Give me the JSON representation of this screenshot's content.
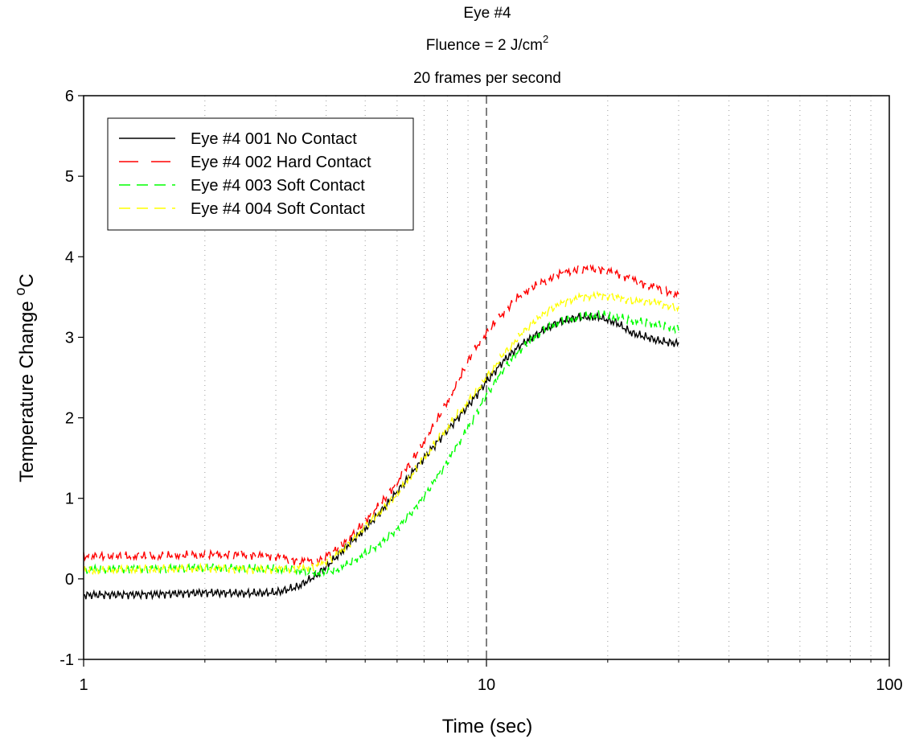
{
  "chart_data": {
    "type": "line",
    "title_lines": [
      "Eye #4",
      "Fluence = 2 J/cm",
      "20 frames per second"
    ],
    "title_superscript": "2",
    "xlabel": "Time (sec)",
    "ylabel": "Temperature Change ",
    "ylabel_superscript": "o",
    "ylabel_unit": "C",
    "xscale": "log",
    "xlim": [
      1,
      100
    ],
    "ylim": [
      -1,
      6
    ],
    "x_ticks": [
      "1",
      "10",
      "100"
    ],
    "y_ticks": [
      "-1",
      "0",
      "1",
      "2",
      "3",
      "4",
      "5",
      "6"
    ],
    "grid": "vertical minor dotted",
    "reference_line": {
      "x": 10,
      "style": "dashed"
    },
    "legend_position": "top-left",
    "series": [
      {
        "name": "Eye #4 001 No Contact",
        "color": "#000000",
        "dash": "solid",
        "x": [
          1,
          1.5,
          2,
          2.5,
          3,
          3.4,
          3.8,
          4.2,
          4.6,
          5,
          5.5,
          6,
          6.5,
          7,
          7.5,
          8,
          8.5,
          9,
          9.5,
          10,
          11,
          12,
          13,
          14,
          15,
          17,
          19,
          21,
          23,
          25,
          27,
          30
        ],
        "y": [
          -0.2,
          -0.19,
          -0.17,
          -0.18,
          -0.17,
          -0.1,
          0.05,
          0.25,
          0.45,
          0.62,
          0.85,
          1.08,
          1.3,
          1.5,
          1.68,
          1.85,
          2.0,
          2.15,
          2.3,
          2.45,
          2.7,
          2.88,
          3.0,
          3.1,
          3.18,
          3.25,
          3.25,
          3.18,
          3.05,
          3.0,
          2.95,
          2.92
        ]
      },
      {
        "name": "Eye #4 002 Hard Contact",
        "color": "#ff0000",
        "dash": "long-dash",
        "x": [
          1,
          1.5,
          2,
          2.5,
          3,
          3.4,
          3.8,
          4.2,
          4.6,
          5,
          5.5,
          6,
          6.5,
          7,
          7.5,
          8,
          8.5,
          9,
          9.5,
          10,
          11,
          12,
          13,
          14,
          15,
          17,
          19,
          21,
          23,
          25,
          27,
          30
        ],
        "y": [
          0.28,
          0.28,
          0.3,
          0.3,
          0.28,
          0.22,
          0.22,
          0.35,
          0.52,
          0.72,
          0.95,
          1.2,
          1.45,
          1.7,
          1.95,
          2.2,
          2.45,
          2.7,
          2.9,
          3.05,
          3.3,
          3.5,
          3.62,
          3.7,
          3.78,
          3.85,
          3.85,
          3.8,
          3.72,
          3.65,
          3.6,
          3.52
        ]
      },
      {
        "name": "Eye #4 003 Soft Contact",
        "color": "#00ff00",
        "dash": "dash",
        "x": [
          1,
          1.5,
          2,
          2.5,
          3,
          3.4,
          3.8,
          4.2,
          4.6,
          5,
          5.5,
          6,
          6.5,
          7,
          7.5,
          8,
          8.5,
          9,
          9.5,
          10,
          11,
          12,
          13,
          14,
          15,
          17,
          19,
          21,
          23,
          25,
          27,
          30
        ],
        "y": [
          0.12,
          0.13,
          0.14,
          0.13,
          0.12,
          0.1,
          0.07,
          0.1,
          0.2,
          0.32,
          0.45,
          0.62,
          0.82,
          1.02,
          1.25,
          1.45,
          1.68,
          1.88,
          2.08,
          2.28,
          2.6,
          2.82,
          2.98,
          3.1,
          3.18,
          3.25,
          3.28,
          3.25,
          3.2,
          3.18,
          3.15,
          3.1
        ]
      },
      {
        "name": "Eye #4 004 Soft Contact",
        "color": "#ffff00",
        "dash": "dash",
        "x": [
          1,
          1.5,
          2,
          2.5,
          3,
          3.4,
          3.8,
          4.2,
          4.6,
          5,
          5.5,
          6,
          6.5,
          7,
          7.5,
          8,
          8.5,
          9,
          9.5,
          10,
          11,
          12,
          13,
          14,
          15,
          17,
          19,
          21,
          23,
          25,
          27,
          30
        ],
        "y": [
          0.1,
          0.12,
          0.13,
          0.12,
          0.12,
          0.13,
          0.16,
          0.28,
          0.45,
          0.65,
          0.85,
          1.05,
          1.28,
          1.5,
          1.7,
          1.88,
          2.05,
          2.2,
          2.35,
          2.5,
          2.78,
          3.0,
          3.18,
          3.3,
          3.4,
          3.5,
          3.52,
          3.5,
          3.45,
          3.45,
          3.42,
          3.35
        ]
      }
    ]
  }
}
